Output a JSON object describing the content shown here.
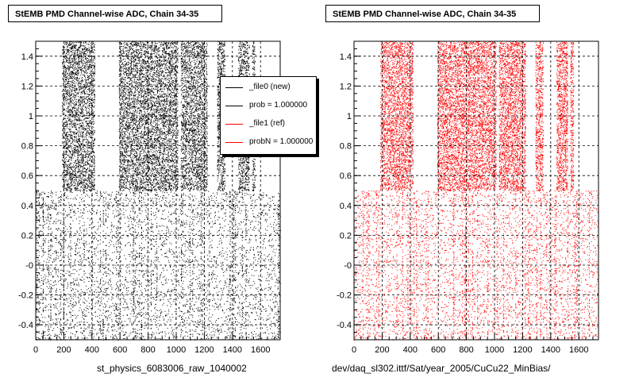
{
  "charts": {
    "left": {
      "title": "StEMB PMD Channel-wise ADC, Chain 34-35",
      "caption": "st_physics_6083006_raw_1040002"
    },
    "right": {
      "title": "StEMB PMD Channel-wise ADC, Chain 34-35",
      "caption": "dev/daq_sl302.ittf/Sat/year_2005/CuCu22_MinBias/"
    }
  },
  "legend": {
    "entries": [
      {
        "label": "_file0 (new)",
        "color": "#000000"
      },
      {
        "label": "prob = 1.000000",
        "color": "#000000"
      },
      {
        "label": "_file1 (ref)",
        "color": "#ff0000"
      },
      {
        "label": "probN = 1.000000",
        "color": "#ff0000"
      }
    ]
  },
  "chart_data": [
    {
      "type": "scatter",
      "title": "StEMB PMD Channel-wise ADC, Chain 34-35",
      "xlabel": "st_physics_6083006_raw_1040002",
      "ylabel": "",
      "xlim": [
        0,
        1740
      ],
      "ylim": [
        -0.5,
        1.5
      ],
      "x_ticks": [
        0,
        200,
        400,
        600,
        800,
        1000,
        1200,
        1400,
        1600
      ],
      "y_ticks": [
        -0.4,
        -0.2,
        -0.0,
        0.2,
        0.4,
        0.6,
        0.8,
        1.0,
        1.2,
        1.4
      ],
      "y_tick_labels": [
        "-0.4",
        "-0.2",
        "-0",
        "0.2",
        "0.4",
        "0.6",
        "0.8",
        "1",
        "1.2",
        "1.4"
      ],
      "grid": true,
      "series_color": "#000000",
      "dense_bands": [
        [
          185,
          420
        ],
        [
          590,
          1010
        ],
        [
          1030,
          1220
        ],
        [
          1290,
          1345
        ],
        [
          1440,
          1520
        ],
        [
          1540,
          1560
        ]
      ],
      "band_y_range": [
        0.5,
        1.5
      ],
      "sparse_y_range": [
        -0.5,
        0.5
      ]
    },
    {
      "type": "scatter",
      "title": "StEMB PMD Channel-wise ADC, Chain 34-35",
      "xlabel": "dev/daq_sl302.ittf/Sat/year_2005/CuCu22_MinBias/",
      "ylabel": "",
      "xlim": [
        0,
        1740
      ],
      "ylim": [
        -0.5,
        1.5
      ],
      "x_ticks": [
        0,
        200,
        400,
        600,
        800,
        1000,
        1200,
        1400,
        1600
      ],
      "y_ticks": [
        -0.4,
        -0.2,
        -0.0,
        0.2,
        0.4,
        0.6,
        0.8,
        1.0,
        1.2,
        1.4
      ],
      "y_tick_labels": [
        "-0.4",
        "-0.2",
        "-0",
        "0.2",
        "0.4",
        "0.6",
        "0.8",
        "1",
        "1.2",
        "1.4"
      ],
      "grid": true,
      "series_color": "#ff0000",
      "dense_bands": [
        [
          185,
          420
        ],
        [
          590,
          1010
        ],
        [
          1030,
          1220
        ],
        [
          1290,
          1345
        ],
        [
          1440,
          1520
        ],
        [
          1540,
          1560
        ]
      ],
      "band_y_range": [
        0.5,
        1.5
      ],
      "sparse_y_range": [
        -0.5,
        0.5
      ]
    }
  ]
}
